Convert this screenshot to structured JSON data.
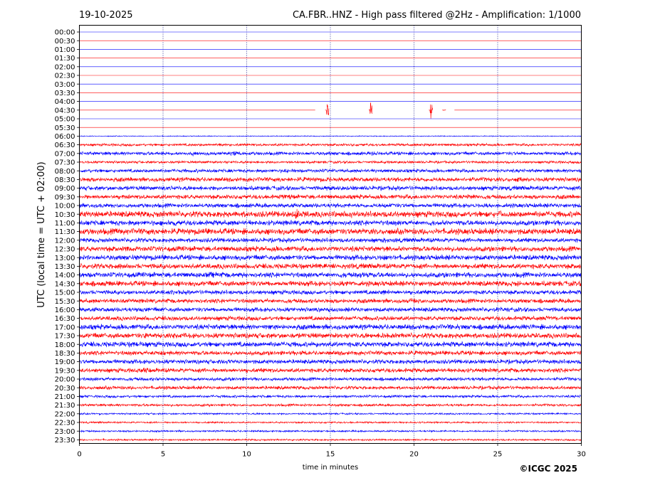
{
  "header": {
    "date": "19-10-2025",
    "title": "CA.FBR..HNZ - High pass filtered @2Hz - Amplification: 1/1000"
  },
  "footer": {
    "copyright": "©ICGC 2025"
  },
  "chart_data": {
    "type": "line",
    "subtype": "helicorder",
    "date": "19-10-2025",
    "title": "CA.FBR..HNZ - High pass filtered @2Hz - Amplification: 1/1000",
    "xlabel": "time in minutes",
    "ylabel": "UTC (local time = UTC + 02:00)",
    "xlim": [
      0,
      30
    ],
    "xticks": [
      0,
      5,
      10,
      15,
      20,
      25,
      30
    ],
    "x_gridlines": [
      5,
      10,
      15,
      20,
      25
    ],
    "grid": "vertical dotted",
    "rows": [
      "00:00",
      "00:30",
      "01:00",
      "01:30",
      "02:00",
      "02:30",
      "03:00",
      "03:30",
      "04:00",
      "04:30",
      "05:00",
      "05:30",
      "06:00",
      "06:30",
      "07:00",
      "07:30",
      "08:00",
      "08:30",
      "09:00",
      "09:30",
      "10:00",
      "10:30",
      "11:00",
      "11:30",
      "12:00",
      "12:30",
      "13:00",
      "13:30",
      "14:00",
      "14:30",
      "15:00",
      "15:30",
      "16:00",
      "16:30",
      "17:00",
      "17:30",
      "18:00",
      "18:30",
      "19:00",
      "19:30",
      "20:00",
      "20:30",
      "21:00",
      "21:30",
      "22:00",
      "22:30",
      "23:00",
      "23:30"
    ],
    "trace_colors": [
      "#0000ff",
      "#ff0000"
    ],
    "noise_levels": [
      0,
      0,
      0,
      0,
      0,
      0,
      0,
      0,
      0,
      0,
      0,
      0,
      0.1,
      0.3,
      0.4,
      0.3,
      0.4,
      0.5,
      0.5,
      0.5,
      0.5,
      0.7,
      0.6,
      0.7,
      0.5,
      0.6,
      0.6,
      0.6,
      0.6,
      0.6,
      0.5,
      0.5,
      0.5,
      0.5,
      0.6,
      0.6,
      0.6,
      0.5,
      0.5,
      0.5,
      0.4,
      0.4,
      0.3,
      0.3,
      0.2,
      0.2,
      0.2,
      0.2
    ],
    "gap": {
      "row": "04:30",
      "from_min": 14.1,
      "to_min": 22.4
    },
    "events": [
      {
        "row": "04:30",
        "minute": 14.8,
        "amplitude": 3.1
      },
      {
        "row": "04:30",
        "minute": 17.4,
        "amplitude": 3.1
      },
      {
        "row": "04:30",
        "minute": 21.0,
        "amplitude": 3.1
      },
      {
        "row": "04:30",
        "minute": 21.8,
        "amplitude": 0.2
      },
      {
        "row": "06:30",
        "minute": 8.4,
        "amplitude": 0.25
      },
      {
        "row": "06:30",
        "minute": 20.6,
        "amplitude": 0.2
      },
      {
        "row": "07:00",
        "minute": 5.0,
        "amplitude": 0.3
      },
      {
        "row": "07:00",
        "minute": 6.8,
        "amplitude": 0.3
      },
      {
        "row": "07:00",
        "minute": 9.3,
        "amplitude": 0.35
      },
      {
        "row": "07:00",
        "minute": 17.5,
        "amplitude": 0.25
      },
      {
        "row": "07:30",
        "minute": 18.3,
        "amplitude": 0.2
      },
      {
        "row": "08:00",
        "minute": 12.3,
        "amplitude": 0.2
      },
      {
        "row": "08:00",
        "minute": 15.0,
        "amplitude": 0.2
      },
      {
        "row": "08:00",
        "minute": 17.6,
        "amplitude": 0.25
      },
      {
        "row": "08:00",
        "minute": 29.8,
        "amplitude": 0.3
      },
      {
        "row": "08:30",
        "minute": 14.6,
        "amplitude": 0.3
      },
      {
        "row": "08:30",
        "minute": 26.2,
        "amplitude": 0.3
      },
      {
        "row": "09:00",
        "minute": 5.0,
        "amplitude": 0.25
      },
      {
        "row": "09:00",
        "minute": 14.8,
        "amplitude": 0.25
      },
      {
        "row": "09:00",
        "minute": 25.0,
        "amplitude": 0.25
      },
      {
        "row": "09:30",
        "minute": 2.6,
        "amplitude": 0.2
      },
      {
        "row": "09:30",
        "minute": 12.2,
        "amplitude": 0.2
      },
      {
        "row": "09:30",
        "minute": 23.3,
        "amplitude": 0.25
      },
      {
        "row": "10:00",
        "minute": 1.3,
        "amplitude": 0.2
      },
      {
        "row": "10:00",
        "minute": 18.2,
        "amplitude": 0.25
      },
      {
        "row": "10:00",
        "minute": 24.5,
        "amplitude": 0.2
      },
      {
        "row": "10:30",
        "minute": 12.9,
        "amplitude": 1.4
      },
      {
        "row": "10:30",
        "minute": 16.2,
        "amplitude": 0.4
      },
      {
        "row": "10:30",
        "minute": 25.1,
        "amplitude": 0.4
      },
      {
        "row": "11:00",
        "minute": 21.3,
        "amplitude": 0.5
      },
      {
        "row": "11:00",
        "minute": 5.3,
        "amplitude": 0.2
      },
      {
        "row": "11:30",
        "minute": 2.3,
        "amplitude": 0.25
      },
      {
        "row": "11:30",
        "minute": 16.6,
        "amplitude": 0.25
      },
      {
        "row": "12:00",
        "minute": 18.3,
        "amplitude": 0.25
      },
      {
        "row": "12:30",
        "minute": 2.8,
        "amplitude": 0.2
      },
      {
        "row": "12:30",
        "minute": 18.7,
        "amplitude": 0.2
      },
      {
        "row": "13:00",
        "minute": 3.1,
        "amplitude": 0.25
      },
      {
        "row": "13:00",
        "minute": 18.2,
        "amplitude": 0.25
      },
      {
        "row": "13:30",
        "minute": 2.3,
        "amplitude": 0.25
      },
      {
        "row": "13:30",
        "minute": 29.8,
        "amplitude": 0.35
      },
      {
        "row": "14:00",
        "minute": 7.7,
        "amplitude": 0.25
      },
      {
        "row": "14:00",
        "minute": 16.8,
        "amplitude": 0.25
      },
      {
        "row": "14:30",
        "minute": 1.6,
        "amplitude": 0.2
      },
      {
        "row": "14:30",
        "minute": 15.9,
        "amplitude": 0.2
      },
      {
        "row": "14:30",
        "minute": 26.2,
        "amplitude": 0.25
      },
      {
        "row": "15:00",
        "minute": 5.3,
        "amplitude": 0.25
      },
      {
        "row": "15:00",
        "minute": 18.2,
        "amplitude": 0.2
      },
      {
        "row": "15:30",
        "minute": 2.6,
        "amplitude": 0.25
      },
      {
        "row": "15:30",
        "minute": 19.8,
        "amplitude": 0.3
      },
      {
        "row": "16:00",
        "minute": 3.6,
        "amplitude": 0.2
      },
      {
        "row": "16:00",
        "minute": 15.1,
        "amplitude": 0.25
      },
      {
        "row": "16:00",
        "minute": 25.2,
        "amplitude": 0.2
      },
      {
        "row": "16:30",
        "minute": 5.5,
        "amplitude": 0.25
      },
      {
        "row": "16:30",
        "minute": 18.2,
        "amplitude": 0.25
      },
      {
        "row": "16:30",
        "minute": 27.9,
        "amplitude": 0.25
      },
      {
        "row": "17:00",
        "minute": 11.3,
        "amplitude": 0.25
      },
      {
        "row": "17:00",
        "minute": 22.3,
        "amplitude": 0.25
      },
      {
        "row": "17:00",
        "minute": 26.6,
        "amplitude": 0.25
      },
      {
        "row": "17:30",
        "minute": 3.9,
        "amplitude": 0.35
      },
      {
        "row": "17:30",
        "minute": 5.6,
        "amplitude": 0.3
      },
      {
        "row": "17:30",
        "minute": 18.1,
        "amplitude": 0.25
      },
      {
        "row": "17:30",
        "minute": 27.0,
        "amplitude": 0.25
      },
      {
        "row": "18:00",
        "minute": 3.2,
        "amplitude": 0.25
      },
      {
        "row": "18:00",
        "minute": 14.2,
        "amplitude": 0.2
      },
      {
        "row": "18:30",
        "minute": 4.5,
        "amplitude": 0.2
      },
      {
        "row": "18:30",
        "minute": 13.3,
        "amplitude": 0.25
      },
      {
        "row": "19:00",
        "minute": 8.5,
        "amplitude": 0.15
      },
      {
        "row": "19:30",
        "minute": 3.8,
        "amplitude": 0.15
      },
      {
        "row": "20:00",
        "minute": 6.4,
        "amplitude": 0.15
      },
      {
        "row": "21:00",
        "minute": 0.3,
        "amplitude": 0.15
      },
      {
        "row": "22:00",
        "minute": 1.2,
        "amplitude": 0.2
      },
      {
        "row": "23:00",
        "minute": 12.5,
        "amplitude": 0.15
      }
    ]
  }
}
